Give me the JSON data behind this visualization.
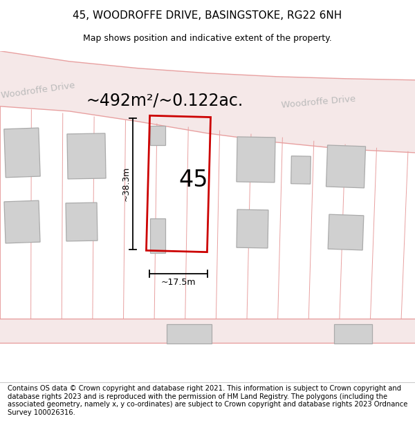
{
  "title": "45, WOODROFFE DRIVE, BASINGSTOKE, RG22 6NH",
  "subtitle": "Map shows position and indicative extent of the property.",
  "area_text": "~492m²/~0.122ac.",
  "street_name_left": "Woodroffe Drive",
  "street_name_right": "Woodroffe Drive",
  "property_number": "45",
  "dim_height": "~38.3m",
  "dim_width": "~17.5m",
  "footer": "Contains OS data © Crown copyright and database right 2021. This information is subject to Crown copyright and database rights 2023 and is reproduced with the permission of HM Land Registry. The polygons (including the associated geometry, namely x, y co-ordinates) are subject to Crown copyright and database rights 2023 Ordnance Survey 100026316.",
  "map_bg": "#ffffff",
  "road_fill": "#f5e8e8",
  "road_line_color": "#e8a0a0",
  "plot_outline_color": "#cc0000",
  "building_fill": "#d0d0d0",
  "building_edge": "#aaaaaa",
  "street_text_color": "#bbbbbb",
  "title_fontsize": 11,
  "subtitle_fontsize": 9,
  "area_fontsize": 17,
  "property_num_fontsize": 24,
  "dim_fontsize": 9,
  "footer_fontsize": 7.2
}
